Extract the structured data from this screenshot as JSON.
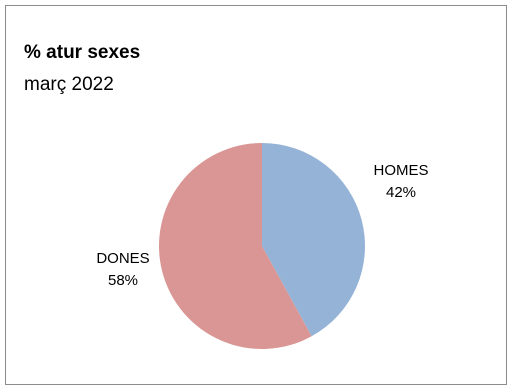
{
  "chart_data": {
    "type": "pie",
    "title": "% atur sexes",
    "subtitle": "març 2022",
    "slices": [
      {
        "label": "HOMES",
        "value": 42,
        "value_label": "42%",
        "color": "#95b3d7"
      },
      {
        "label": "DONES",
        "value": 58,
        "value_label": "58%",
        "color": "#d99694"
      }
    ],
    "legend": "none"
  }
}
